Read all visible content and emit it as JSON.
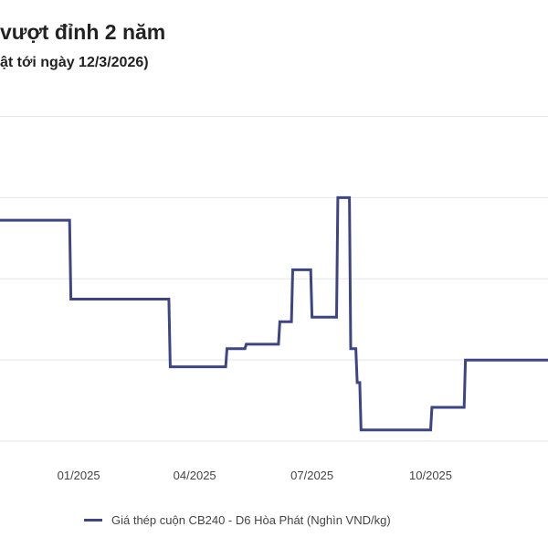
{
  "chart_data": {
    "type": "line",
    "title": "vượt đỉnh 2 năm",
    "subtitle": "ật tới ngày 12/3/2026)",
    "x_tick_labels": [
      "01/2025",
      "04/2025",
      "07/2025",
      "10/2025"
    ],
    "series": [
      {
        "name": "Giá thép cuộn CB240 - D6 Hòa Phát (Nghìn VND/kg)",
        "color": "#3d4585",
        "points": [
          [
            "2024-11-01",
            14.5
          ],
          [
            "2024-12-25",
            14.5
          ],
          [
            "2024-12-26",
            14.15
          ],
          [
            "2025-03-12",
            14.15
          ],
          [
            "2025-03-13",
            13.85
          ],
          [
            "2025-04-25",
            13.85
          ],
          [
            "2025-04-26",
            13.93
          ],
          [
            "2025-05-10",
            13.93
          ],
          [
            "2025-05-11",
            13.95
          ],
          [
            "2025-06-05",
            13.95
          ],
          [
            "2025-06-06",
            14.05
          ],
          [
            "2025-06-15",
            14.05
          ],
          [
            "2025-06-16",
            14.28
          ],
          [
            "2025-06-30",
            14.28
          ],
          [
            "2025-07-01",
            14.07
          ],
          [
            "2025-07-20",
            14.07
          ],
          [
            "2025-07-21",
            14.6
          ],
          [
            "2025-07-30",
            14.6
          ],
          [
            "2025-07-31",
            13.93
          ],
          [
            "2025-08-04",
            13.93
          ],
          [
            "2025-08-05",
            13.78
          ],
          [
            "2025-08-07",
            13.78
          ],
          [
            "2025-08-08",
            13.57
          ],
          [
            "2025-10-01",
            13.57
          ],
          [
            "2025-10-02",
            13.67
          ],
          [
            "2025-10-27",
            13.67
          ],
          [
            "2025-10-28",
            13.88
          ],
          [
            "2025-12-31",
            13.88
          ]
        ]
      }
    ],
    "grid": true
  }
}
